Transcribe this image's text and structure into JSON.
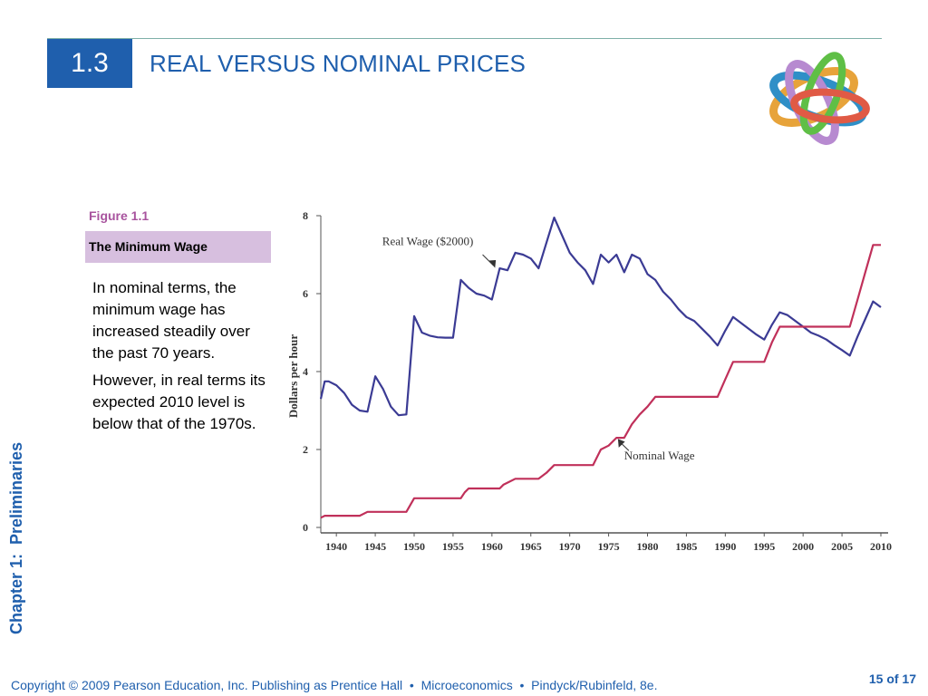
{
  "slide": {
    "section_number": "1.3",
    "title": "REAL VERSUS NOMINAL PRICES",
    "chapter_label": "Chapter 1:  Preliminaries",
    "figure_label": "Figure 1.1",
    "figure_title": "The Minimum Wage",
    "description": [
      "In nominal terms, the minimum wage has increased steadily over the past 70 years.",
      "However, in real terms its expected 2010 level is below that of the 1970s."
    ],
    "footer": "Copyright © 2009 Pearson Education, Inc. Publishing as Prentice Hall  •  Microeconomics  •  Pindyck/Rubinfeld, 8e.",
    "page": "15 of 17"
  },
  "colors": {
    "accent_blue": "#1f5fad",
    "figure_purple": "#a8539e",
    "figure_box": "#d7bfdf",
    "real_wage_line": "#3b3b94",
    "nominal_wage_line": "#c0305a"
  },
  "chart_data": {
    "type": "line",
    "ylabel": "Dollars per hour",
    "xlabel": "",
    "ylim": [
      0,
      8
    ],
    "xlim": [
      1938,
      2010
    ],
    "yticks": [
      0,
      2,
      4,
      6,
      8
    ],
    "xticks": [
      1940,
      1945,
      1950,
      1955,
      1960,
      1965,
      1970,
      1975,
      1980,
      1985,
      1990,
      1995,
      2000,
      2005,
      2010
    ],
    "grid": false,
    "series": [
      {
        "name": "Real Wage ($2000)",
        "x": [
          1938,
          1938.5,
          1939,
          1940,
          1941,
          1942,
          1943,
          1944,
          1945,
          1946,
          1947,
          1948,
          1949,
          1950,
          1951,
          1952,
          1953,
          1954,
          1955,
          1956,
          1957,
          1958,
          1959,
          1960,
          1961,
          1962,
          1963,
          1964,
          1965,
          1966,
          1967,
          1968,
          1969,
          1970,
          1971,
          1972,
          1973,
          1974,
          1975,
          1976,
          1977,
          1978,
          1979,
          1980,
          1981,
          1982,
          1983,
          1984,
          1985,
          1986,
          1987,
          1988,
          1989,
          1990,
          1991,
          1992,
          1993,
          1994,
          1995,
          1996,
          1997,
          1998,
          1999,
          2000,
          2001,
          2002,
          2003,
          2004,
          2005,
          2006,
          2007,
          2008,
          2009,
          2010
        ],
        "values": [
          3.3,
          3.75,
          3.75,
          3.65,
          3.45,
          3.15,
          3.0,
          2.97,
          3.88,
          3.55,
          3.1,
          2.88,
          2.9,
          5.42,
          5.0,
          4.92,
          4.88,
          4.87,
          4.87,
          6.35,
          6.15,
          6.0,
          5.95,
          5.85,
          6.65,
          6.6,
          7.05,
          7.0,
          6.9,
          6.65,
          7.3,
          7.95,
          7.5,
          7.05,
          6.8,
          6.6,
          6.25,
          7.0,
          6.8,
          7.0,
          6.55,
          7.0,
          6.9,
          6.5,
          6.35,
          6.05,
          5.85,
          5.6,
          5.4,
          5.3,
          5.1,
          4.9,
          4.67,
          5.05,
          5.4,
          5.25,
          5.1,
          4.95,
          4.82,
          5.2,
          5.52,
          5.45,
          5.3,
          5.15,
          5.0,
          4.92,
          4.82,
          4.68,
          4.55,
          4.41,
          4.9,
          5.35,
          5.8,
          5.65
        ]
      },
      {
        "name": "Nominal Wage",
        "x": [
          1938,
          1938.5,
          1939,
          1943,
          1944,
          1945,
          1948,
          1949,
          1950,
          1956,
          1956.5,
          1957,
          1961,
          1961.5,
          1962,
          1963,
          1966,
          1967,
          1968,
          1970,
          1972,
          1973,
          1974,
          1975,
          1976,
          1977,
          1978,
          1979,
          1980,
          1981,
          1989,
          1990,
          1991,
          1995,
          1996,
          1997,
          2006,
          2007,
          2008,
          2009,
          2010
        ],
        "values": [
          0.25,
          0.3,
          0.3,
          0.3,
          0.4,
          0.4,
          0.4,
          0.4,
          0.75,
          0.75,
          0.9,
          1.0,
          1.0,
          1.1,
          1.15,
          1.25,
          1.25,
          1.4,
          1.6,
          1.6,
          1.6,
          1.6,
          2.0,
          2.1,
          2.3,
          2.3,
          2.65,
          2.9,
          3.1,
          3.35,
          3.35,
          3.8,
          4.25,
          4.25,
          4.75,
          5.15,
          5.15,
          5.85,
          6.55,
          7.25,
          7.25
        ]
      }
    ],
    "annotations": [
      "Real Wage ($2000)",
      "Nominal Wage"
    ]
  }
}
